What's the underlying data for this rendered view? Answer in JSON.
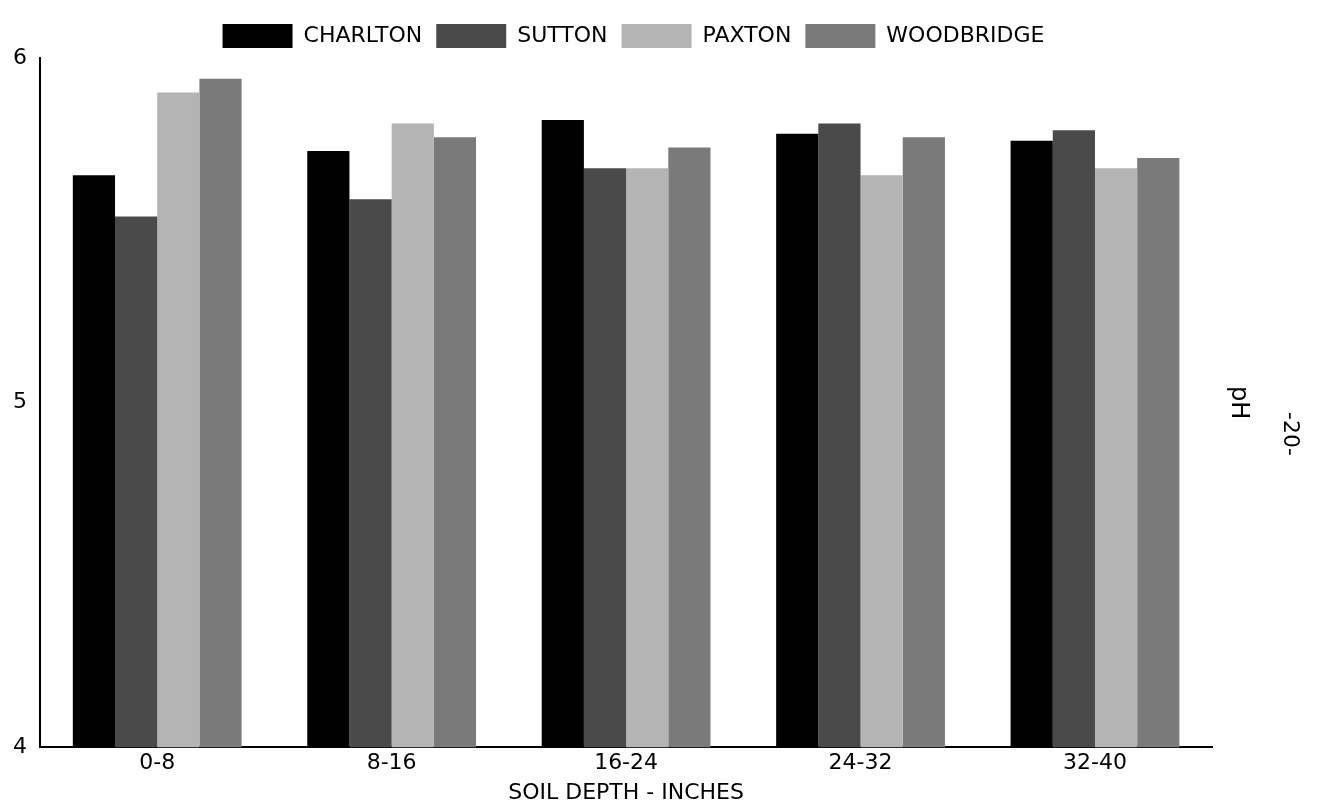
{
  "chart_data": {
    "type": "bar",
    "xlabel": "SOIL DEPTH - INCHES",
    "ylabel": "pH",
    "categories": [
      "0-8",
      "8-16",
      "16-24",
      "24-32",
      "32-40"
    ],
    "series": [
      {
        "name": "CHARLTON",
        "color": "#000000",
        "values": [
          5.66,
          5.73,
          5.82,
          5.78,
          5.76
        ]
      },
      {
        "name": "SUTTON",
        "color": "#4a4a4a",
        "values": [
          5.54,
          5.59,
          5.68,
          5.81,
          5.79
        ]
      },
      {
        "name": "PAXTON",
        "color": "#b4b4b4",
        "values": [
          5.9,
          5.81,
          5.68,
          5.66,
          5.68
        ]
      },
      {
        "name": "WOODBRIDGE",
        "color": "#7a7a7a",
        "values": [
          5.94,
          5.77,
          5.74,
          5.77,
          5.71
        ]
      }
    ],
    "ylim": [
      4,
      6
    ],
    "yticks": [
      4,
      5,
      6
    ],
    "grid": false,
    "legend": "top",
    "annotations": [
      "-20-"
    ]
  }
}
